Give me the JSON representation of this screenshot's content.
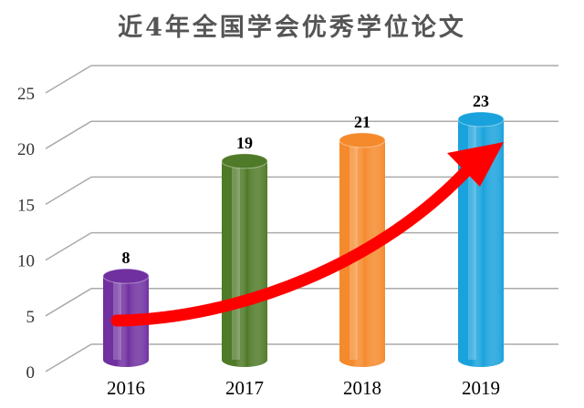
{
  "chart_data": {
    "type": "bar",
    "title": "近4年全国学会优秀学位论文",
    "categories": [
      "2016",
      "2017",
      "2018",
      "2019"
    ],
    "values": [
      8,
      19,
      21,
      23
    ],
    "yticks": [
      "0",
      "5",
      "10",
      "15",
      "20",
      "25"
    ],
    "ylim": [
      0,
      25
    ],
    "grid": true,
    "style": "3d-cylinder",
    "colors": [
      "#7030a0",
      "#4f7a28",
      "#f58a2c",
      "#19a2dc"
    ],
    "annotation": "red upward trend arrow",
    "arrow_color": "#ff0000"
  }
}
